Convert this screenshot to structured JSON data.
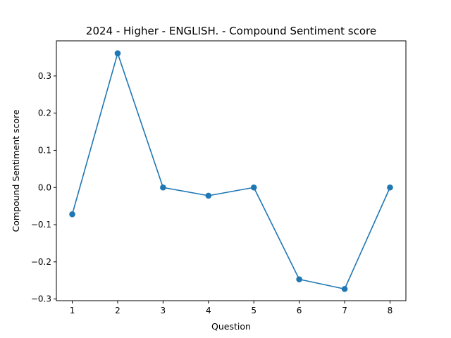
{
  "chart_data": {
    "type": "line",
    "title": "2024 - Higher - ENGLISH. - Compound Sentiment score",
    "xlabel": "Question",
    "ylabel": "Compound Sentiment score",
    "x": [
      1,
      2,
      3,
      4,
      5,
      6,
      7,
      8
    ],
    "x_tick_labels": [
      "1",
      "2",
      "3",
      "4",
      "5",
      "6",
      "7",
      "8"
    ],
    "y_ticks": [
      -0.3,
      -0.2,
      -0.1,
      0.0,
      0.1,
      0.2,
      0.3
    ],
    "y_tick_labels": [
      "−0.3",
      "−0.2",
      "−0.1",
      "0.0",
      "0.1",
      "0.2",
      "0.3"
    ],
    "xlim": [
      0.65,
      8.35
    ],
    "ylim": [
      -0.3045,
      0.3945
    ],
    "series": [
      {
        "values": [
          -0.072,
          0.361,
          0.0,
          -0.022,
          0.0,
          -0.247,
          -0.273,
          0.0
        ],
        "color": "#1f77b4",
        "marker": "circle"
      }
    ],
    "grid": false,
    "legend": "none"
  }
}
